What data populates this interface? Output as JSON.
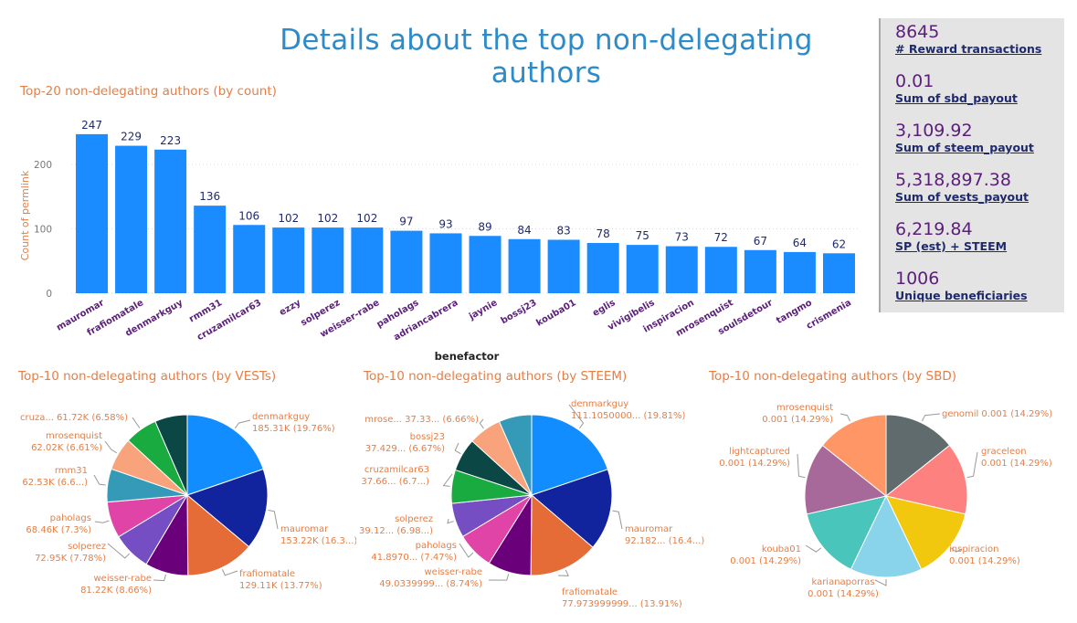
{
  "page": {
    "title": "Details about the top non-delegating authors"
  },
  "colors": {
    "title": "#2E8BC9",
    "chart_title": "#E67E45",
    "bar": "#1A8CFF",
    "bar_label": "#1F2A6E",
    "category_label": "#5B1F7A",
    "kpi_value": "#5B1F7A",
    "kpi_label": "#1F2A6E"
  },
  "kpis": [
    {
      "value": "8645",
      "label": "# Reward transactions"
    },
    {
      "value": "0.01",
      "label": "Sum of sbd_payout"
    },
    {
      "value": "3,109.92",
      "label": "Sum of steem_payout"
    },
    {
      "value": "5,318,897.38",
      "label": "Sum of vests_payout"
    },
    {
      "value": "6,219.84",
      "label": "SP (est) + STEEM"
    },
    {
      "value": "1006",
      "label": "Unique beneficiaries"
    }
  ],
  "chart_data": [
    {
      "type": "bar",
      "title": "Top-20 non-delegating authors (by count)",
      "xlabel": "benefactor",
      "ylabel": "Count of permlink",
      "ylim": [
        0,
        260
      ],
      "yticks": [
        0,
        100,
        200
      ],
      "grid": true,
      "categories": [
        "mauromar",
        "frafiomatale",
        "denmarkguy",
        "rmm31",
        "cruzamilcar63",
        "ezzy",
        "solperez",
        "weisser-rabe",
        "paholags",
        "adriancabrera",
        "jaynie",
        "bossj23",
        "kouba01",
        "eglis",
        "vivigibelis",
        "inspiracion",
        "mrosenquist",
        "soulsdetour",
        "tangmo",
        "crismenia"
      ],
      "values": [
        247,
        229,
        223,
        136,
        106,
        102,
        102,
        102,
        97,
        93,
        89,
        84,
        83,
        78,
        75,
        73,
        72,
        67,
        64,
        62
      ]
    },
    {
      "type": "pie",
      "title": "Top-10 non-delegating authors (by VESTs)",
      "slices": [
        {
          "name": "denmarkguy",
          "value": 19.76,
          "color": "#118DFF",
          "label": [
            "denmarkguy",
            "185.31K (19.76%)"
          ]
        },
        {
          "name": "mauromar",
          "value": 16.34,
          "color": "#12239E",
          "label": [
            "mauromar",
            "153.22K (16.3...)"
          ]
        },
        {
          "name": "frafiomatale",
          "value": 13.77,
          "color": "#E66C37",
          "label": [
            "frafiomatale",
            "129.11K (13.77%)"
          ]
        },
        {
          "name": "weisser-rabe",
          "value": 8.66,
          "color": "#6B007B",
          "label": [
            "weisser-rabe",
            "81.22K (8.66%)"
          ]
        },
        {
          "name": "solperez",
          "value": 7.78,
          "color": "#744EC2",
          "label": [
            "solperez",
            "72.95K (7.78%)"
          ]
        },
        {
          "name": "paholags",
          "value": 7.3,
          "color": "#E044A7",
          "label": [
            "paholags",
            "68.46K (7.3%)"
          ]
        },
        {
          "name": "rmm31",
          "value": 6.67,
          "color": "#3599B8",
          "label": [
            "rmm31",
            "62.53K (6.6...)"
          ]
        },
        {
          "name": "mrosenquist",
          "value": 6.61,
          "color": "#F8A37B",
          "label": [
            "mrosenquist",
            "62.02K (6.61%)"
          ]
        },
        {
          "name": "cruza...",
          "value": 6.58,
          "color": "#1AAB40",
          "label": [
            "cruza... 61.72K (6.58%)"
          ]
        },
        {
          "name": "other",
          "value": 6.53,
          "color": "#0B4845",
          "label": []
        }
      ]
    },
    {
      "type": "pie",
      "title": "Top-10 non-delegating authors (by STEEM)",
      "slices": [
        {
          "name": "denmarkguy",
          "value": 19.81,
          "color": "#118DFF",
          "label": [
            "denmarkguy",
            "111.1050000... (19.81%)"
          ]
        },
        {
          "name": "mauromar",
          "value": 16.44,
          "color": "#12239E",
          "label": [
            "mauromar",
            "92.182... (16.4...)"
          ]
        },
        {
          "name": "frafiomatale",
          "value": 13.91,
          "color": "#E66C37",
          "label": [
            "frafiomatale",
            "77.973999999... (13.91%)"
          ]
        },
        {
          "name": "weisser-rabe",
          "value": 8.74,
          "color": "#6B007B",
          "label": [
            "weisser-rabe",
            "49.0339999... (8.74%)"
          ]
        },
        {
          "name": "paholags",
          "value": 7.47,
          "color": "#E044A7",
          "label": [
            "paholags",
            "41.8970... (7.47%)"
          ]
        },
        {
          "name": "solperez",
          "value": 6.98,
          "color": "#744EC2",
          "label": [
            "solperez",
            "39.12... (6.98...)"
          ]
        },
        {
          "name": "cruzamilcar63",
          "value": 6.72,
          "color": "#1AAB40",
          "label": [
            "cruzamilcar63",
            "37.66... (6.7...)"
          ]
        },
        {
          "name": "bossj23",
          "value": 6.67,
          "color": "#0B4845",
          "label": [
            "bossj23",
            "37.429... (6.67%)"
          ]
        },
        {
          "name": "mrose...",
          "value": 6.66,
          "color": "#F8A37B",
          "label": [
            "mrose... 37.33... (6.66%)"
          ]
        },
        {
          "name": "other",
          "value": 6.6,
          "color": "#3599B8",
          "label": []
        }
      ]
    },
    {
      "type": "pie",
      "title": "Top-10 non-delegating authors (by SBD)",
      "slices": [
        {
          "name": "genomil",
          "value": 14.29,
          "color": "#5F6B6D",
          "label": [
            "genomil 0.001 (14.29%)"
          ]
        },
        {
          "name": "graceleon",
          "value": 14.29,
          "color": "#FD817E",
          "label": [
            "graceleon",
            "0.001 (14.29%)"
          ]
        },
        {
          "name": "inspiracion",
          "value": 14.29,
          "color": "#F2C80F",
          "label": [
            "inspiracion",
            "0.001 (14.29%)"
          ]
        },
        {
          "name": "karianaporras",
          "value": 14.29,
          "color": "#8AD4EB",
          "label": [
            "karianaporras",
            "0.001 (14.29%)"
          ]
        },
        {
          "name": "kouba01",
          "value": 14.29,
          "color": "#4AC5BB",
          "label": [
            "kouba01",
            "0.001 (14.29%)"
          ]
        },
        {
          "name": "lightcaptured",
          "value": 14.29,
          "color": "#A66999",
          "label": [
            "lightcaptured",
            "0.001 (14.29%)"
          ]
        },
        {
          "name": "mrosenquist",
          "value": 14.29,
          "color": "#FE9666",
          "label": [
            "mrosenquist",
            "0.001 (14.29%)"
          ]
        }
      ]
    }
  ]
}
